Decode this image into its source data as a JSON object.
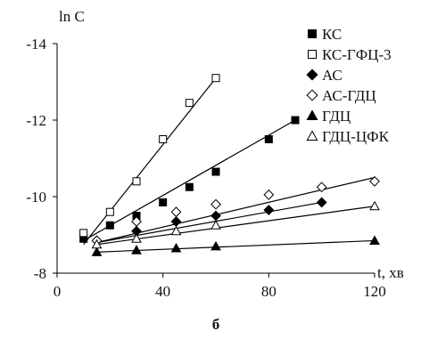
{
  "chart_data": {
    "type": "scatter",
    "ylabel": "ln C",
    "xlabel": "t, хв",
    "caption": "б",
    "xlim": [
      0,
      120
    ],
    "ylim": [
      -8,
      -14
    ],
    "y_inverted": true,
    "x_ticks": [
      0,
      40,
      80,
      120
    ],
    "y_ticks": [
      -8,
      -10,
      -12,
      -14
    ],
    "x_tick_labels": [
      "0",
      "40",
      "80",
      "120"
    ],
    "y_tick_labels": [
      "-8",
      "-10",
      "-12",
      "-14"
    ],
    "grid": false,
    "legend_position": "top-right",
    "series": [
      {
        "name": "КС",
        "marker": "square-filled",
        "x": [
          10,
          20,
          30,
          40,
          50,
          60,
          80,
          90
        ],
        "y": [
          -8.9,
          -9.25,
          -9.5,
          -9.85,
          -10.25,
          -10.65,
          -11.5,
          -12.0
        ],
        "fit": [
          [
            10,
            -8.85
          ],
          [
            90,
            -12.0
          ]
        ]
      },
      {
        "name": "КС-ГФЦ-3",
        "marker": "square-open",
        "x": [
          10,
          20,
          30,
          40,
          50,
          60
        ],
        "y": [
          -9.05,
          -9.6,
          -10.4,
          -11.5,
          -12.45,
          -13.1
        ],
        "fit": [
          [
            10,
            -8.75
          ],
          [
            60,
            -13.1
          ]
        ]
      },
      {
        "name": "АС",
        "marker": "diamond-filled",
        "x": [
          15,
          30,
          45,
          60,
          80,
          100
        ],
        "y": [
          -8.85,
          -9.1,
          -9.35,
          -9.5,
          -9.65,
          -9.85
        ],
        "fit": [
          [
            15,
            -8.8
          ],
          [
            100,
            -9.85
          ]
        ]
      },
      {
        "name": "АС-ГДЦ",
        "marker": "diamond-open",
        "x": [
          15,
          30,
          45,
          60,
          80,
          100,
          120
        ],
        "y": [
          -8.85,
          -9.35,
          -9.6,
          -9.8,
          -10.05,
          -10.25,
          -10.4
        ],
        "fit": [
          [
            15,
            -8.8
          ],
          [
            120,
            -10.5
          ]
        ]
      },
      {
        "name": "ГДЦ",
        "marker": "triangle-filled",
        "x": [
          15,
          30,
          45,
          60,
          120
        ],
        "y": [
          -8.55,
          -8.6,
          -8.65,
          -8.7,
          -8.85
        ],
        "fit": [
          [
            15,
            -8.55
          ],
          [
            120,
            -8.85
          ]
        ]
      },
      {
        "name": "ГДЦ-ЦФК",
        "marker": "triangle-open",
        "x": [
          15,
          30,
          45,
          60,
          120
        ],
        "y": [
          -8.75,
          -8.9,
          -9.1,
          -9.25,
          -9.75
        ],
        "fit": [
          [
            15,
            -8.75
          ],
          [
            120,
            -9.75
          ]
        ]
      }
    ]
  }
}
